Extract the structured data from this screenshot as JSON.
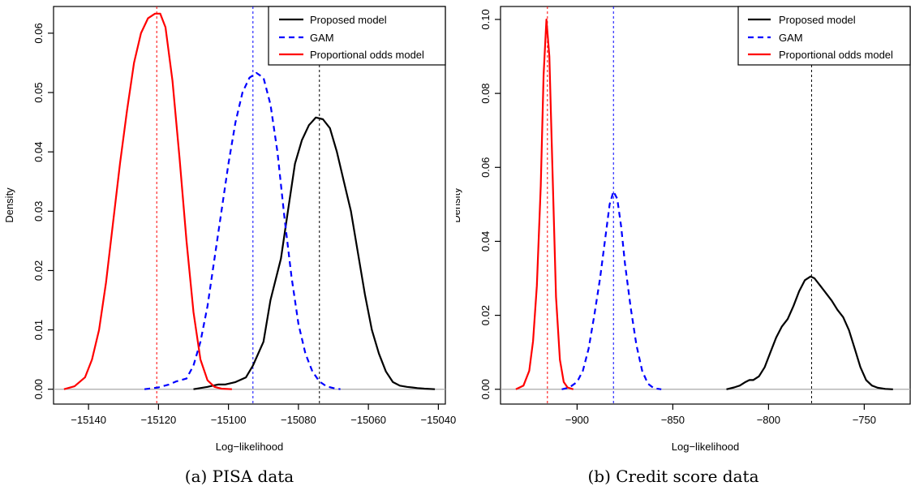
{
  "captions": {
    "a": "(a) PISA data",
    "b": "(b) Credit score data"
  },
  "chart_data": [
    {
      "type": "line",
      "xlabel": "Log−likelihood",
      "ylabel": "Density",
      "xlim": [
        -15150,
        -15038
      ],
      "ylim": [
        -0.0025,
        0.0645
      ],
      "xticks": [
        -15140,
        -15120,
        -15100,
        -15080,
        -15060,
        -15040
      ],
      "xtick_labels": [
        "−15140",
        "−15120",
        "−15100",
        "−15080",
        "−15060",
        "−15040"
      ],
      "yticks": [
        0.0,
        0.01,
        0.02,
        0.03,
        0.04,
        0.05,
        0.06
      ],
      "ytick_labels": [
        "0.00",
        "0.01",
        "0.02",
        "0.03",
        "0.04",
        "0.05",
        "0.06"
      ],
      "legend_position": "top-right",
      "grid": false,
      "baseline": 0,
      "series": [
        {
          "name": "Proposed model",
          "color": "#000000",
          "dash": "solid",
          "vline": -15074,
          "x": [
            -15110,
            -15106,
            -15103,
            -15101,
            -15098,
            -15095,
            -15093,
            -15090,
            -15088,
            -15085,
            -15083,
            -15081,
            -15079,
            -15077,
            -15075,
            -15073,
            -15071,
            -15069,
            -15067,
            -15065,
            -15063,
            -15061,
            -15059,
            -15057,
            -15055,
            -15053,
            -15051,
            -15049,
            -15046,
            -15044,
            -15041
          ],
          "y": [
            0.0,
            0.0004,
            0.0008,
            0.0008,
            0.0012,
            0.002,
            0.004,
            0.008,
            0.015,
            0.022,
            0.03,
            0.038,
            0.042,
            0.0445,
            0.0458,
            0.0455,
            0.044,
            0.04,
            0.035,
            0.03,
            0.023,
            0.016,
            0.01,
            0.006,
            0.003,
            0.0012,
            0.0006,
            0.0004,
            0.0002,
            0.0001,
            0.0
          ]
        },
        {
          "name": "GAM",
          "color": "#0000ff",
          "dash": "dashed",
          "vline": -15093,
          "x": [
            -15124,
            -15120,
            -15117,
            -15115,
            -15112,
            -15110,
            -15108,
            -15106,
            -15104,
            -15102,
            -15100,
            -15098,
            -15096,
            -15094,
            -15092,
            -15090,
            -15088,
            -15086,
            -15084,
            -15082,
            -15080,
            -15078,
            -15076,
            -15074,
            -15072,
            -15070,
            -15068
          ],
          "y": [
            0.0,
            0.0003,
            0.0008,
            0.0013,
            0.0018,
            0.004,
            0.008,
            0.014,
            0.022,
            0.03,
            0.038,
            0.045,
            0.05,
            0.0525,
            0.0533,
            0.0525,
            0.048,
            0.04,
            0.029,
            0.019,
            0.011,
            0.006,
            0.003,
            0.0013,
            0.0005,
            0.0002,
            0.0
          ]
        },
        {
          "name": "Proportional odds model",
          "color": "#ff0000",
          "dash": "solid",
          "vline": -15120.5,
          "x": [
            -15147,
            -15144,
            -15141,
            -15139,
            -15137,
            -15135,
            -15133,
            -15131,
            -15129,
            -15127,
            -15125,
            -15123,
            -15121,
            -15119.5,
            -15118,
            -15116,
            -15114,
            -15112,
            -15110,
            -15108,
            -15106,
            -15104,
            -15102,
            -15099
          ],
          "y": [
            0.0,
            0.0005,
            0.002,
            0.005,
            0.01,
            0.018,
            0.028,
            0.038,
            0.047,
            0.055,
            0.06,
            0.0625,
            0.0633,
            0.0633,
            0.061,
            0.052,
            0.039,
            0.025,
            0.013,
            0.005,
            0.0015,
            0.0004,
            0.0001,
            0.0
          ]
        }
      ]
    },
    {
      "type": "line",
      "xlabel": "Log−likelihood",
      "ylabel": "Density",
      "xlim": [
        -940,
        -726
      ],
      "ylim": [
        -0.004,
        0.1035
      ],
      "xticks": [
        -900,
        -850,
        -800,
        -750
      ],
      "xtick_labels": [
        "−900",
        "−850",
        "−800",
        "−750"
      ],
      "yticks": [
        0.0,
        0.02,
        0.04,
        0.06,
        0.08,
        0.1
      ],
      "ytick_labels": [
        "0.00",
        "0.02",
        "0.04",
        "0.06",
        "0.08",
        "0.10"
      ],
      "legend_position": "top-right",
      "grid": false,
      "baseline": 0,
      "series": [
        {
          "name": "Proposed model",
          "color": "#000000",
          "dash": "solid",
          "vline": -777.5,
          "x": [
            -822,
            -818,
            -815,
            -812,
            -810,
            -808,
            -805,
            -802,
            -799,
            -796,
            -793,
            -790,
            -787,
            -784,
            -781,
            -778,
            -776,
            -773,
            -770,
            -767,
            -764,
            -761,
            -758,
            -755,
            -752,
            -749,
            -746,
            -743,
            -739,
            -735
          ],
          "y": [
            0.0,
            0.0005,
            0.001,
            0.002,
            0.0025,
            0.0025,
            0.0035,
            0.006,
            0.01,
            0.014,
            0.017,
            0.019,
            0.0225,
            0.0265,
            0.0295,
            0.0305,
            0.03,
            0.028,
            0.026,
            0.024,
            0.0215,
            0.0195,
            0.016,
            0.011,
            0.006,
            0.0025,
            0.001,
            0.0004,
            0.0001,
            0.0
          ]
        },
        {
          "name": "GAM",
          "color": "#0000ff",
          "dash": "dashed",
          "vline": -881,
          "x": [
            -908,
            -904,
            -900,
            -897,
            -894,
            -891,
            -888,
            -885,
            -883,
            -881,
            -879,
            -877,
            -875,
            -872,
            -869,
            -866,
            -863,
            -860,
            -856
          ],
          "y": [
            0.0,
            0.0005,
            0.002,
            0.005,
            0.011,
            0.02,
            0.03,
            0.042,
            0.05,
            0.0535,
            0.0515,
            0.044,
            0.034,
            0.022,
            0.012,
            0.005,
            0.0015,
            0.0003,
            0.0
          ]
        },
        {
          "name": "Proportional odds model",
          "color": "#ff0000",
          "dash": "solid",
          "vline": -915.5,
          "x": [
            -932,
            -928,
            -925,
            -923,
            -921,
            -919,
            -917.5,
            -916,
            -914.5,
            -913,
            -911,
            -909,
            -907,
            -905,
            -902
          ],
          "y": [
            0.0,
            0.001,
            0.005,
            0.013,
            0.028,
            0.055,
            0.085,
            0.1,
            0.09,
            0.062,
            0.025,
            0.008,
            0.002,
            0.0005,
            0.0
          ]
        }
      ]
    }
  ]
}
